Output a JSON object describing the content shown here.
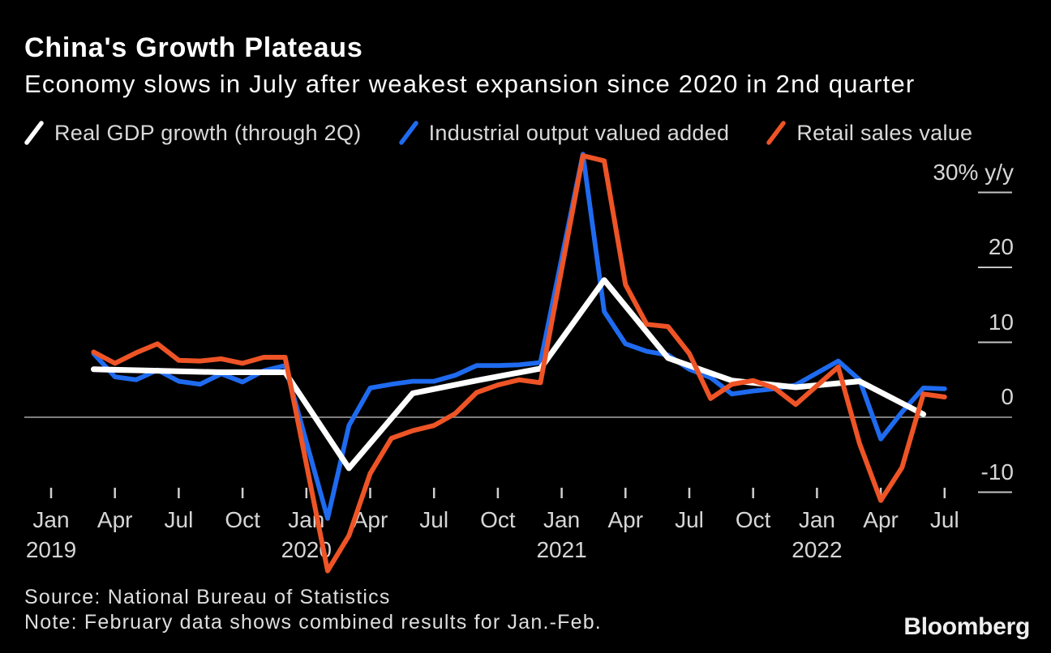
{
  "header": {
    "title": "China's Growth Plateaus",
    "subtitle": "Economy slows in July after weakest expansion since 2020 in 2nd quarter"
  },
  "legend": {
    "items": [
      {
        "label": "Real GDP growth (through 2Q)",
        "color": "#ffffff"
      },
      {
        "label": "Industrial output valued added",
        "color": "#1f6bf0"
      },
      {
        "label": "Retail sales value",
        "color": "#ee5426"
      }
    ]
  },
  "footer": {
    "source": "Source: National Bureau of Statistics",
    "note": "Note: February data shows combined results for Jan.-Feb.",
    "logo": "Bloomberg"
  },
  "colors": {
    "background": "#000000",
    "zero_line": "#a8a8a8",
    "tick": "#cfcfcf",
    "axis_text": "#d6d6d6"
  },
  "chart_data": {
    "type": "line",
    "title": "China's Growth Plateaus",
    "ylabel": "% y/y",
    "x_unit": "months since Jan 2019 (Feb = combined Jan.-Feb. value)",
    "ylim": [
      -22,
      36
    ],
    "grid": "zero-line-only",
    "legend_position": "top",
    "y_axis": {
      "ticks": [
        {
          "v": 30,
          "label": "30% y/y"
        },
        {
          "v": 20,
          "label": "20"
        },
        {
          "v": 10,
          "label": "10"
        },
        {
          "v": 0,
          "label": "0"
        },
        {
          "v": -10,
          "label": "-10"
        }
      ]
    },
    "x_axis": {
      "ticks": [
        {
          "m": 0,
          "label": "Jan",
          "year": "2019"
        },
        {
          "m": 3,
          "label": "Apr"
        },
        {
          "m": 6,
          "label": "Jul"
        },
        {
          "m": 9,
          "label": "Oct"
        },
        {
          "m": 12,
          "label": "Jan",
          "year": "2020"
        },
        {
          "m": 15,
          "label": "Apr"
        },
        {
          "m": 18,
          "label": "Jul"
        },
        {
          "m": 21,
          "label": "Oct"
        },
        {
          "m": 24,
          "label": "Jan",
          "year": "2021"
        },
        {
          "m": 27,
          "label": "Apr"
        },
        {
          "m": 30,
          "label": "Jul"
        },
        {
          "m": 33,
          "label": "Oct"
        },
        {
          "m": 36,
          "label": "Jan",
          "year": "2022"
        },
        {
          "m": 39,
          "label": "Apr"
        },
        {
          "m": 42,
          "label": "Jul"
        }
      ]
    },
    "draw_order": [
      1,
      0,
      2
    ],
    "series": [
      {
        "name": "Real GDP growth (through 2Q)",
        "color": "#ffffff",
        "stroke_width": 7,
        "points": [
          [
            2,
            6.4
          ],
          [
            5,
            6.2
          ],
          [
            8,
            6.0
          ],
          [
            11,
            6.0
          ],
          [
            14,
            -6.8
          ],
          [
            17,
            3.2
          ],
          [
            20,
            4.9
          ],
          [
            23,
            6.5
          ],
          [
            26,
            18.3
          ],
          [
            29,
            7.9
          ],
          [
            32,
            4.9
          ],
          [
            35,
            4.0
          ],
          [
            38,
            4.8
          ],
          [
            41,
            0.4
          ]
        ]
      },
      {
        "name": "Industrial output valued added",
        "color": "#1f6bf0",
        "stroke_width": 5.8,
        "points": [
          [
            2,
            8.5
          ],
          [
            3,
            5.4
          ],
          [
            4,
            5.0
          ],
          [
            5,
            6.3
          ],
          [
            6,
            4.8
          ],
          [
            7,
            4.4
          ],
          [
            8,
            5.8
          ],
          [
            9,
            4.7
          ],
          [
            10,
            6.2
          ],
          [
            11,
            6.9
          ],
          [
            13,
            -13.5
          ],
          [
            14,
            -1.1
          ],
          [
            15,
            3.9
          ],
          [
            16,
            4.4
          ],
          [
            17,
            4.8
          ],
          [
            18,
            4.8
          ],
          [
            19,
            5.6
          ],
          [
            20,
            6.9
          ],
          [
            21,
            6.9
          ],
          [
            22,
            7.0
          ],
          [
            23,
            7.3
          ],
          [
            25,
            35.1
          ],
          [
            26,
            14.1
          ],
          [
            27,
            9.8
          ],
          [
            28,
            8.8
          ],
          [
            29,
            8.3
          ],
          [
            30,
            6.4
          ],
          [
            31,
            5.3
          ],
          [
            32,
            3.1
          ],
          [
            33,
            3.5
          ],
          [
            34,
            3.8
          ],
          [
            35,
            4.3
          ],
          [
            37,
            7.5
          ],
          [
            38,
            5.0
          ],
          [
            39,
            -2.9
          ],
          [
            40,
            0.7
          ],
          [
            41,
            3.9
          ],
          [
            42,
            3.8
          ]
        ]
      },
      {
        "name": "Retail sales value",
        "color": "#ee5426",
        "stroke_width": 6,
        "points": [
          [
            2,
            8.7
          ],
          [
            3,
            7.2
          ],
          [
            4,
            8.6
          ],
          [
            5,
            9.8
          ],
          [
            6,
            7.6
          ],
          [
            7,
            7.5
          ],
          [
            8,
            7.8
          ],
          [
            9,
            7.2
          ],
          [
            10,
            8.0
          ],
          [
            11,
            8.0
          ],
          [
            13,
            -20.5
          ],
          [
            14,
            -15.8
          ],
          [
            15,
            -7.5
          ],
          [
            16,
            -2.8
          ],
          [
            17,
            -1.8
          ],
          [
            18,
            -1.1
          ],
          [
            19,
            0.5
          ],
          [
            20,
            3.3
          ],
          [
            21,
            4.3
          ],
          [
            22,
            5.0
          ],
          [
            23,
            4.6
          ],
          [
            25,
            34.9
          ],
          [
            26,
            34.2
          ],
          [
            27,
            17.7
          ],
          [
            28,
            12.4
          ],
          [
            29,
            12.1
          ],
          [
            30,
            8.5
          ],
          [
            31,
            2.5
          ],
          [
            32,
            4.4
          ],
          [
            33,
            4.9
          ],
          [
            34,
            3.9
          ],
          [
            35,
            1.7
          ],
          [
            37,
            6.7
          ],
          [
            38,
            -3.5
          ],
          [
            39,
            -11.1
          ],
          [
            40,
            -6.7
          ],
          [
            41,
            3.1
          ],
          [
            42,
            2.7
          ]
        ]
      }
    ]
  }
}
